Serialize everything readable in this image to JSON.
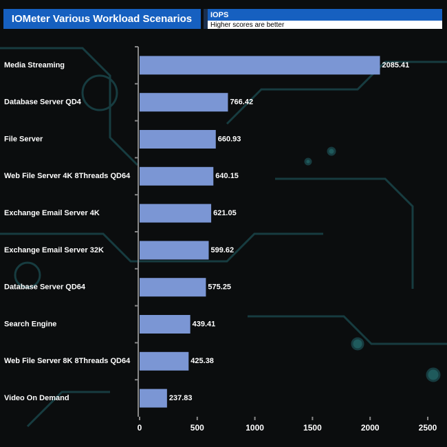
{
  "chart_data": {
    "type": "bar",
    "title": "IOMeter Various Workload Scenarios",
    "subtitle": "Higher scores are better",
    "categories": [
      "Media Streaming",
      "Database Server QD4",
      "File Server",
      "Web File Server 4K 8Threads QD64",
      "Exchange Email Server 4K",
      "Exchange Email Server 32K",
      "Database Server QD64",
      "Search Engine",
      "Web File Server 8K 8Threads QD64",
      "Video On Demand"
    ],
    "series": [
      {
        "name": "IOPS",
        "color": "#7b96d4",
        "values": [
          2085.41,
          766.42,
          660.93,
          640.15,
          621.05,
          599.62,
          575.25,
          439.41,
          425.38,
          237.83
        ]
      }
    ],
    "xlim": [
      0,
      2500
    ],
    "xticks": [
      0,
      500,
      1000,
      1500,
      2000,
      2500
    ]
  }
}
